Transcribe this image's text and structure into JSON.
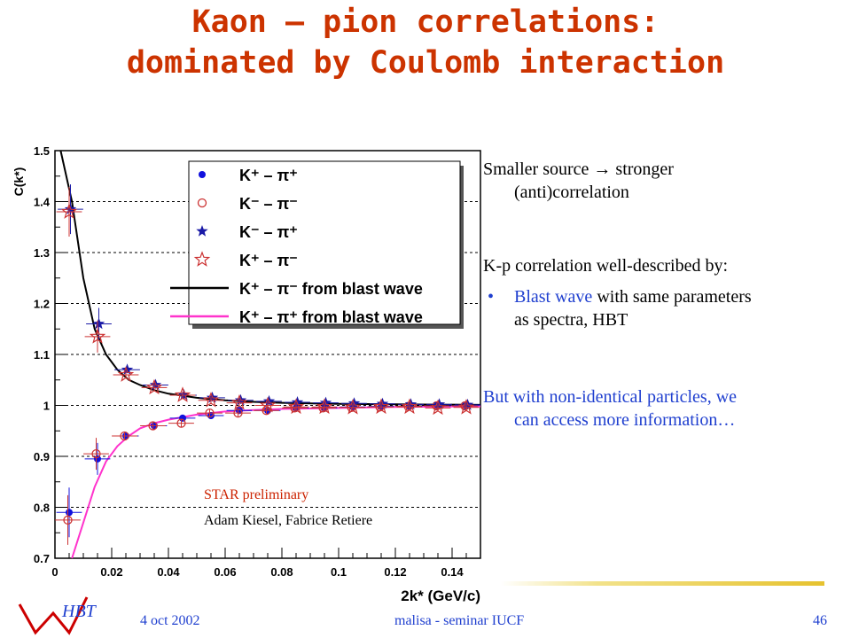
{
  "slide": {
    "title_line1": "Kaon – pion correlations:",
    "title_line2": "dominated by Coulomb interaction",
    "text": {
      "p1_line1": "Smaller source → stronger",
      "p1_line2": "(anti)correlation",
      "p2": "K-p correlation well-described by:",
      "bullet_symbol": "•",
      "b1_part1": "Blast wave",
      "b1_part2": " with same parameters",
      "b1_line2": "as spectra, HBT",
      "p3_line1": "But with non-identical particles, we",
      "p3_line2": "can access more information…"
    },
    "footer": {
      "logo_text": "HBT",
      "date": "4 oct 2002",
      "center": "malisa - seminar IUCF",
      "page": "46"
    },
    "annotation_line1": "STAR preliminary",
    "annotation_line2": "Adam Kiesel, Fabrice Retiere",
    "colors": {
      "title": "#cc3300",
      "body_blue": "#1f3fcf",
      "annotation": "#cc2200",
      "star_blue": "#1a1aa6",
      "magenta": "#ff33cc"
    }
  },
  "chart_data": {
    "type": "scatter",
    "xlabel": "2k* (GeV/c)",
    "ylabel": "C(k*)",
    "xlim": [
      0,
      0.15
    ],
    "ylim": [
      0.7,
      1.5
    ],
    "xticks": [
      "0",
      "0.02",
      "0.04",
      "0.06",
      "0.08",
      "0.1",
      "0.12",
      "0.14"
    ],
    "yticks": [
      "0.7",
      "0.8",
      "0.9",
      "1",
      "1.1",
      "1.2",
      "1.3",
      "1.4",
      "1.5"
    ],
    "grid": "horizontal dotted",
    "legend_position": "top-right",
    "legend": [
      "K⁺ – π⁺",
      "K⁻ – π⁻",
      "K⁻ – π⁺",
      "K⁺ – π⁻",
      "K⁺ – π⁻ from blast wave",
      "K⁺ – π⁺ from blast wave"
    ],
    "x": [
      0.005,
      0.015,
      0.025,
      0.035,
      0.045,
      0.055,
      0.065,
      0.075,
      0.085,
      0.095,
      0.105,
      0.115,
      0.125,
      0.135,
      0.145
    ],
    "series": [
      {
        "name": "K⁺ – π⁺",
        "marker": "filled-circle",
        "color": "#1010dd",
        "values": [
          0.79,
          0.895,
          0.94,
          0.96,
          0.975,
          0.98,
          0.99,
          0.99,
          0.995,
          0.995,
          0.997,
          0.998,
          0.998,
          0.999,
          1.0
        ]
      },
      {
        "name": "K⁻ – π⁻",
        "marker": "open-circle",
        "color": "#cc3333",
        "values": [
          0.775,
          0.905,
          0.94,
          0.96,
          0.965,
          0.985,
          0.985,
          0.99,
          0.995,
          0.995,
          0.996,
          0.997,
          0.998,
          0.999,
          0.999
        ]
      },
      {
        "name": "K⁻ – π⁺",
        "marker": "filled-star",
        "color": "#1a1aa6",
        "values": [
          1.385,
          1.16,
          1.07,
          1.04,
          1.02,
          1.015,
          1.01,
          1.008,
          1.006,
          1.005,
          1.004,
          1.003,
          1.002,
          1.002,
          1.001
        ]
      },
      {
        "name": "K⁺ – π⁻",
        "marker": "open-star",
        "color": "#cc3333",
        "values": [
          1.38,
          1.135,
          1.06,
          1.035,
          1.02,
          1.01,
          1.005,
          1.0,
          0.997,
          0.997,
          0.996,
          0.997,
          0.997,
          0.995,
          0.996
        ]
      }
    ],
    "curves": [
      {
        "name": "K⁺ – π⁻ from blast wave",
        "color": "#000000",
        "x": [
          0.002,
          0.006,
          0.01,
          0.014,
          0.018,
          0.022,
          0.026,
          0.03,
          0.035,
          0.04,
          0.05,
          0.06,
          0.07,
          0.08,
          0.09,
          0.1,
          0.12,
          0.15
        ],
        "y": [
          1.5,
          1.4,
          1.25,
          1.15,
          1.1,
          1.07,
          1.05,
          1.04,
          1.03,
          1.023,
          1.015,
          1.01,
          1.007,
          1.005,
          1.004,
          1.003,
          1.002,
          1.001
        ]
      },
      {
        "name": "K⁺ – π⁺ from blast wave",
        "color": "#ff33cc",
        "x": [
          0.006,
          0.01,
          0.014,
          0.018,
          0.022,
          0.026,
          0.03,
          0.035,
          0.04,
          0.05,
          0.06,
          0.07,
          0.08,
          0.1,
          0.12,
          0.15
        ],
        "y": [
          0.7,
          0.77,
          0.84,
          0.89,
          0.92,
          0.94,
          0.955,
          0.965,
          0.972,
          0.982,
          0.988,
          0.991,
          0.993,
          0.995,
          0.997,
          0.998
        ]
      }
    ]
  }
}
